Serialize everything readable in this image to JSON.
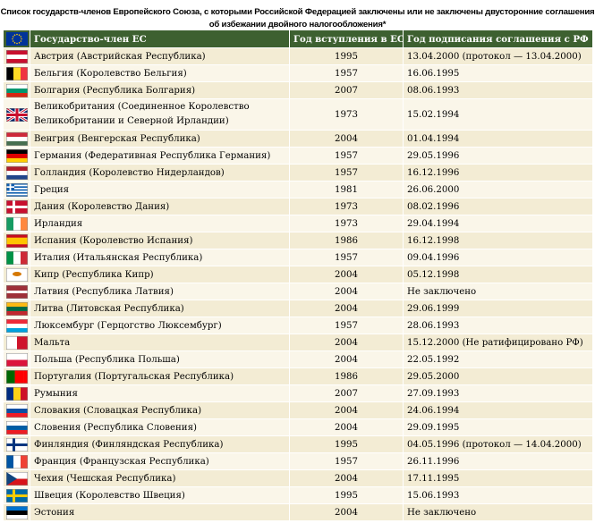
{
  "title": [
    "Список государств-членов Европейского Союза, с которыми Российской Федерацией заключены или не заключены двусторонние соглашения",
    "об избежании двойного налогообложения*"
  ],
  "table": {
    "header": [
      "Государство-член ЕС",
      "Год вступления в ЕС",
      "Год подписания соглашения с РФ"
    ],
    "rows": [
      [
        "Австрия (Австрийская Республика)",
        "1995",
        "13.04.2000 (протокол — 13.04.2000)"
      ],
      [
        "Бельгия (Королевство Бельгия)",
        "1957",
        "16.06.1995"
      ],
      [
        "Болгария (Республика Болгария)",
        "2007",
        "08.06.1993"
      ],
      [
        "Великобритания (Соединенное Королевство Великобритании и Северной Ирландии)",
        "1973",
        "15.02.1994"
      ],
      [
        "Венгрия (Венгерская Республика)",
        "2004",
        "01.04.1994"
      ],
      [
        "Германия (Федеративная Республика Германия)",
        "1957",
        "29.05.1996"
      ],
      [
        "Голландия (Королевство Нидерландов)",
        "1957",
        "16.12.1996"
      ],
      [
        "Греция",
        "1981",
        "26.06.2000"
      ],
      [
        "Дания (Королевство Дания)",
        "1973",
        "08.02.1996"
      ],
      [
        "Ирландия",
        "1973",
        "29.04.1994"
      ],
      [
        "Испания (Королевство Испания)",
        "1986",
        "16.12.1998"
      ],
      [
        "Италия (Итальянская Республика)",
        "1957",
        "09.04.1996"
      ],
      [
        "Кипр (Республика Кипр)",
        "2004",
        "05.12.1998"
      ],
      [
        "Латвия (Республика Латвия)",
        "2004",
        "Не заключено"
      ],
      [
        "Литва (Литовская Республика)",
        "2004",
        "29.06.1999"
      ],
      [
        "Люксембург (Герцогство Люксембург)",
        "1957",
        "28.06.1993"
      ],
      [
        "Мальта",
        "2004",
        "15.12.2000 (Не ратифицировано РФ)"
      ],
      [
        "Польша (Республика Польша)",
        "2004",
        "22.05.1992"
      ],
      [
        "Португалия (Португальская Республика)",
        "1986",
        "29.05.2000"
      ],
      [
        "Румыния",
        "2007",
        "27.09.1993"
      ],
      [
        "Словакия (Словацкая Республика)",
        "2004",
        "24.06.1994"
      ],
      [
        "Словения (Республика Словения)",
        "2004",
        "29.09.1995"
      ],
      [
        "Финляндия (Финляндская Республика)",
        "1995",
        "04.05.1996 (протокол — 14.04.2000)"
      ],
      [
        "Франция (Французская Республика)",
        "1957",
        "26.11.1996"
      ],
      [
        "Чехия (Чешская Республика)",
        "2004",
        "17.11.1995"
      ],
      [
        "Швеция (Королевство Швеция)",
        "1995",
        "15.06.1993"
      ],
      [
        "Эстония",
        "2004",
        "Не заключено"
      ]
    ]
  }
}
